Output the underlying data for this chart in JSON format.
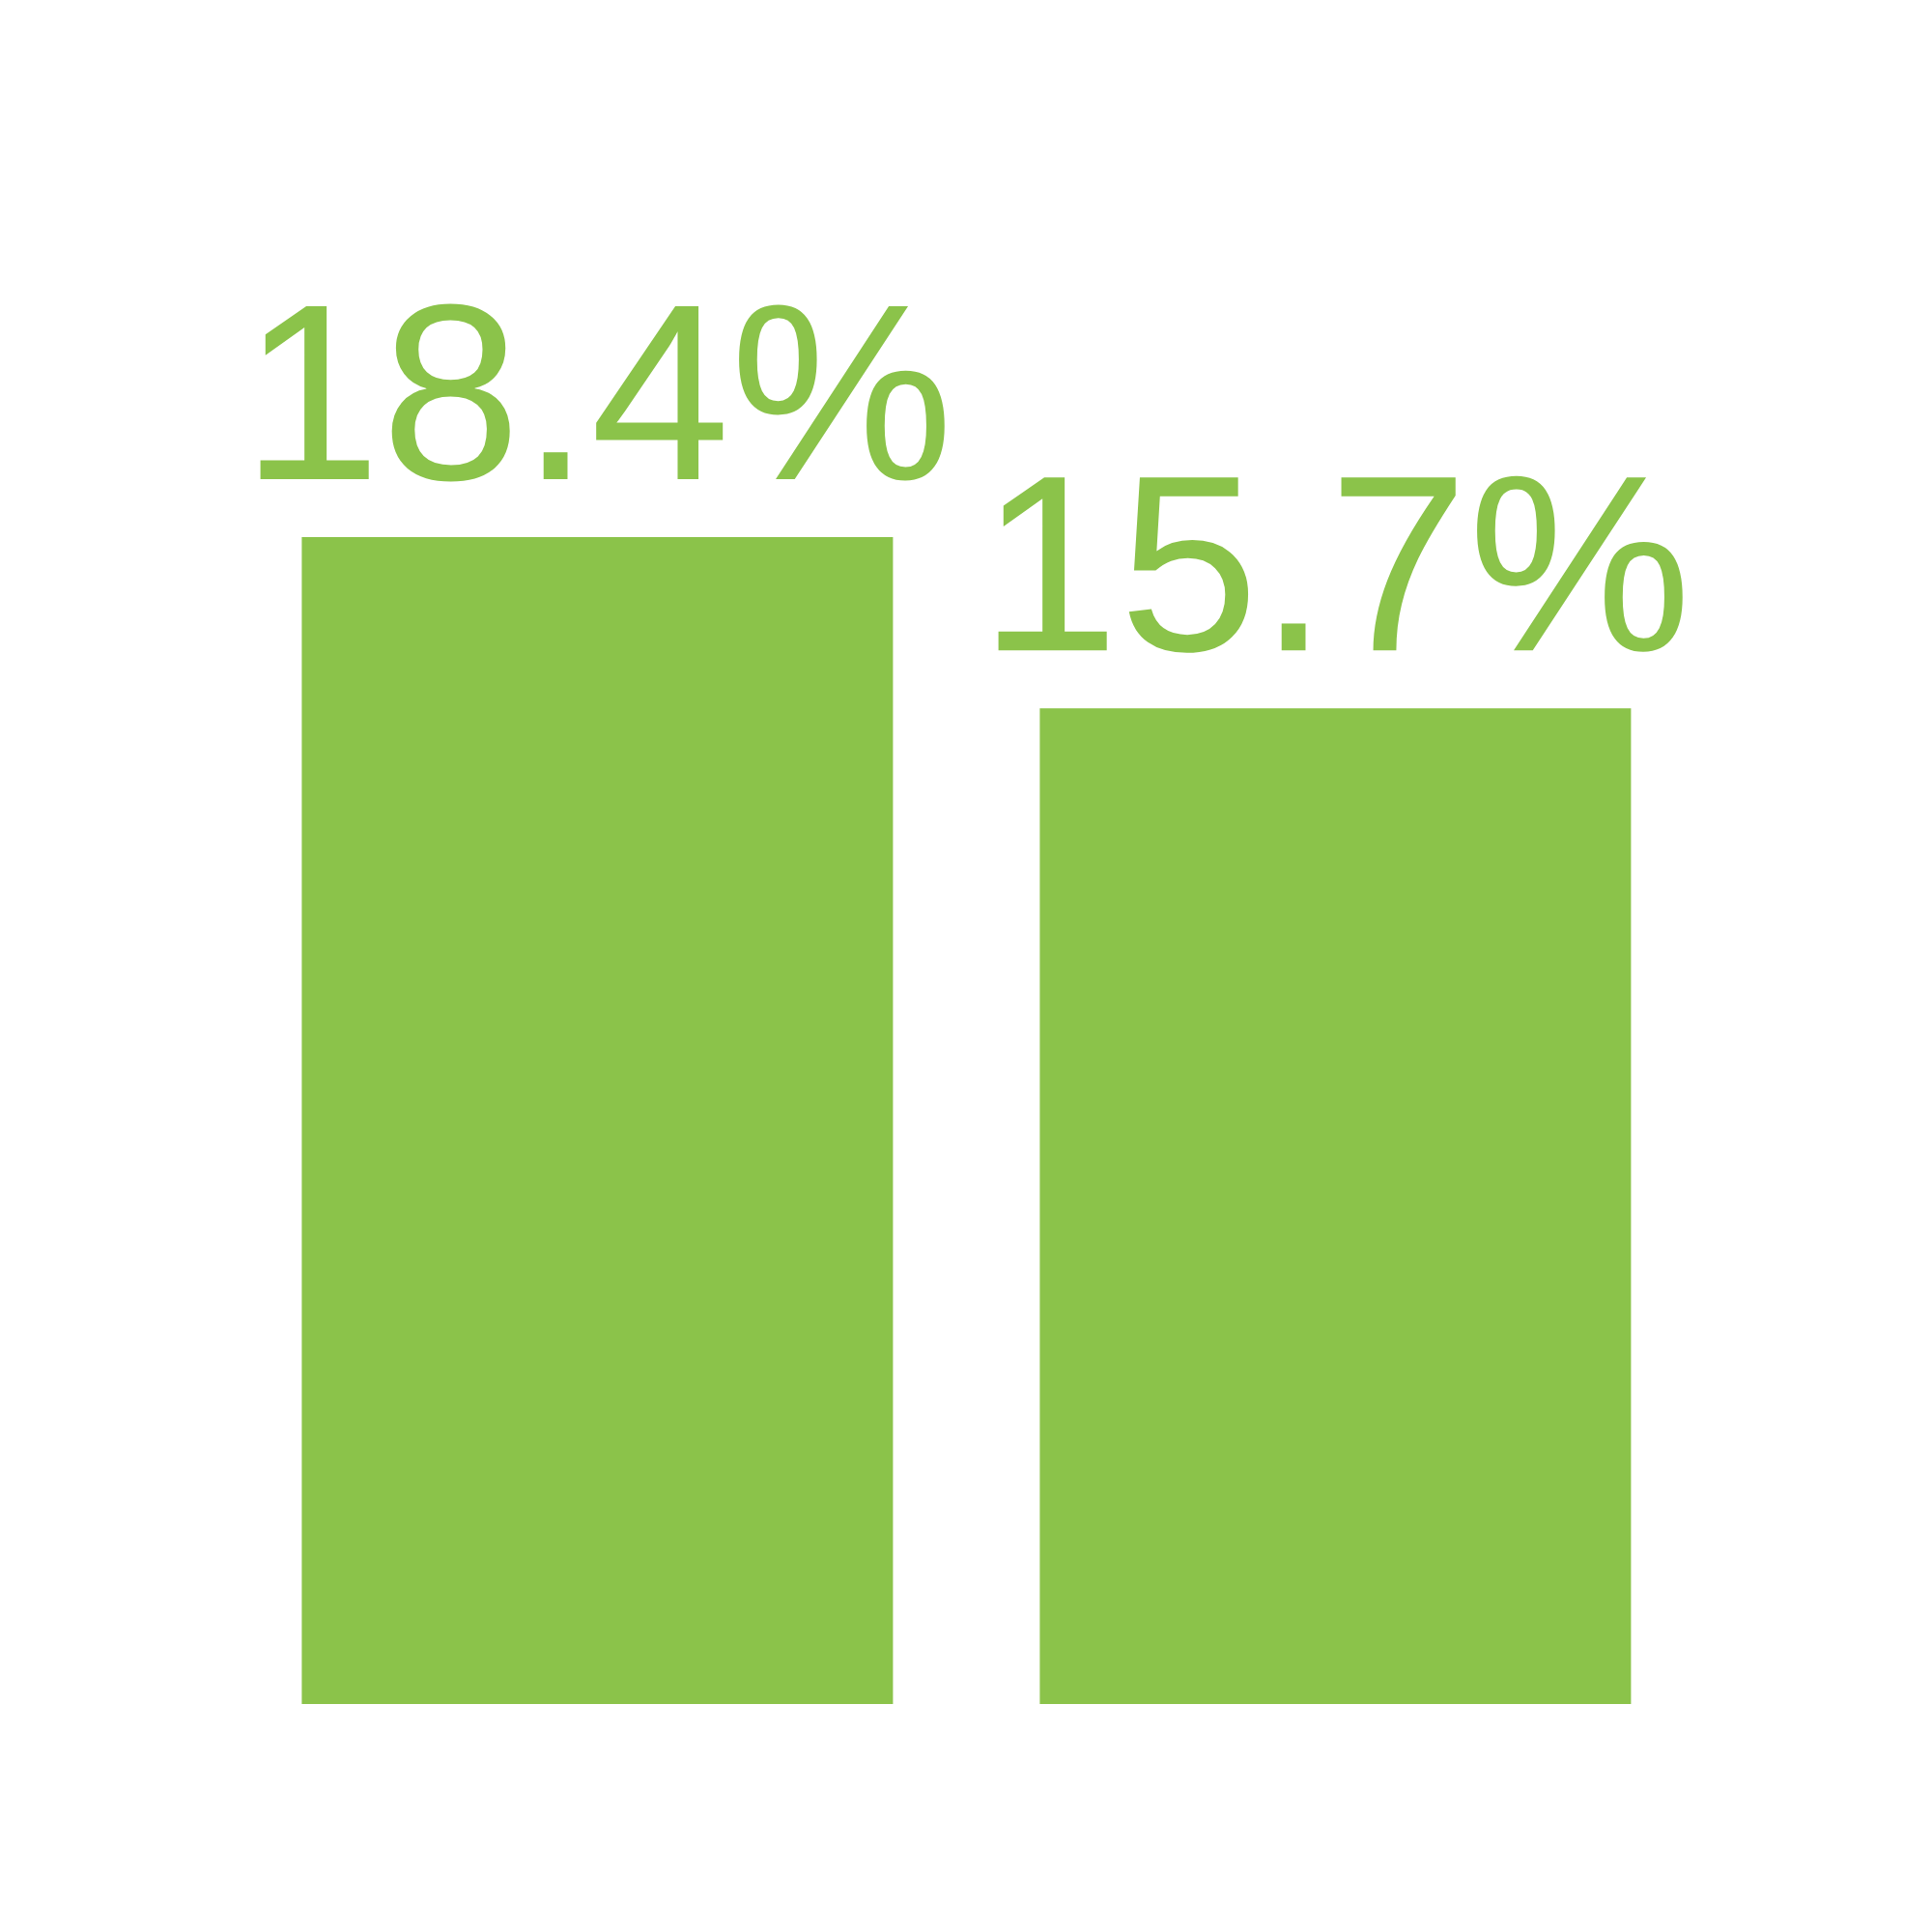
{
  "chart_data": {
    "type": "bar",
    "categories": [
      null,
      null
    ],
    "values": [
      18.4,
      15.7
    ],
    "value_labels": [
      "18.4%",
      "15.7%"
    ],
    "color": "#8bc34a",
    "tick_labels": false,
    "grid": false,
    "legend": false
  }
}
